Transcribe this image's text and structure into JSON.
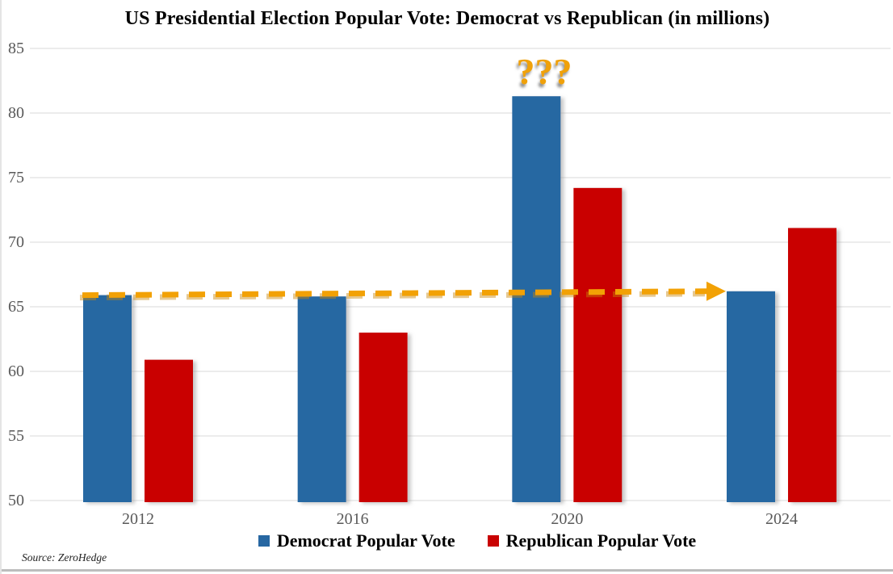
{
  "chart_data": {
    "type": "bar",
    "title": "US Presidential Election Popular Vote: Democrat vs Republican (in millions)",
    "categories": [
      "2012",
      "2016",
      "2020",
      "2024"
    ],
    "series": [
      {
        "name": "Democrat Popular Vote",
        "color": "#2767A2",
        "values": [
          65.9,
          65.8,
          81.3,
          66.2
        ]
      },
      {
        "name": "Republican Popular Vote",
        "color": "#C90202",
        "values": [
          60.9,
          63.0,
          74.2,
          71.1
        ]
      }
    ],
    "ylim": [
      50,
      85
    ],
    "ytick_step": 5,
    "ytick_labels": [
      "50",
      "55",
      "60",
      "65",
      "70",
      "75",
      "80",
      "85"
    ],
    "grid": "horizontal",
    "gridline_color": "#D9D9D9",
    "legend_position": "bottom",
    "annotations": {
      "question_marks": {
        "text": "???",
        "color": "#F0A10A",
        "above_category": "2020",
        "above_series": "Democrat Popular Vote"
      },
      "trend_arrow": {
        "style": "dashed-arrow",
        "color": "#F2A105",
        "from_category": "2012",
        "from_value": 65.9,
        "to_category": "2024",
        "to_value": 66.2
      }
    },
    "source": "Source: ZeroHedge"
  }
}
